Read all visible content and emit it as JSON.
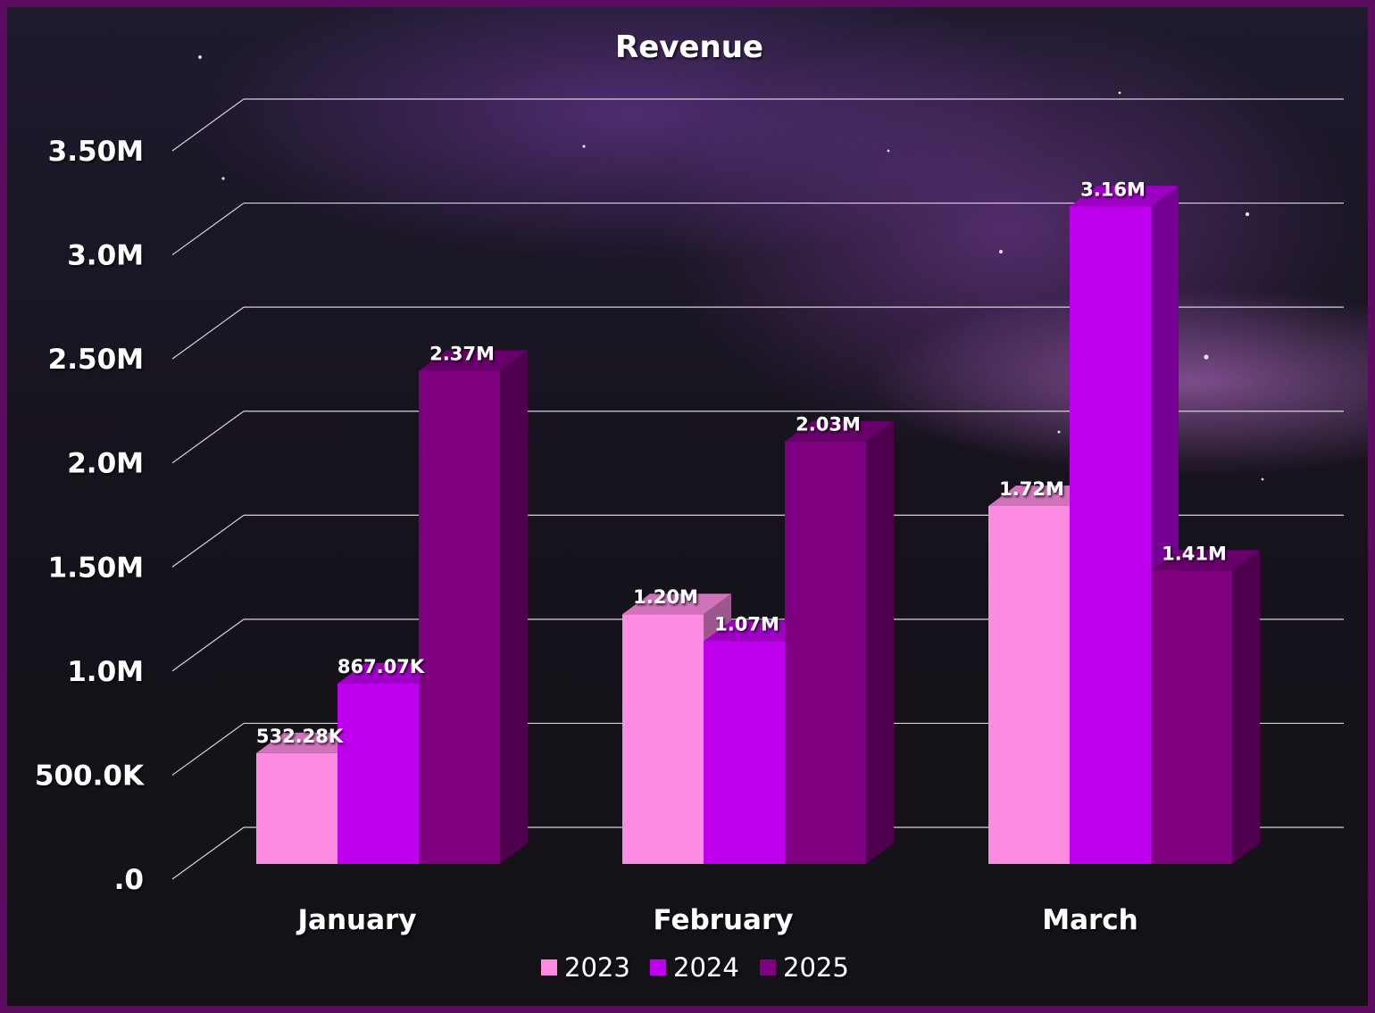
{
  "chart_data": {
    "type": "bar",
    "title": "Revenue",
    "categories": [
      "January",
      "February",
      "March"
    ],
    "series": [
      {
        "name": "2023",
        "values": [
          532280,
          1200000,
          1720000
        ],
        "labels": [
          "532.28K",
          "1.20M",
          "1.72M"
        ],
        "color": "#ff8ce3"
      },
      {
        "name": "2024",
        "values": [
          867070,
          1070000,
          3160000
        ],
        "labels": [
          "867.07K",
          "1.07M",
          "3.16M"
        ],
        "color": "#bf00ee"
      },
      {
        "name": "2025",
        "values": [
          2370000,
          2030000,
          1410000
        ],
        "labels": [
          "2.37M",
          "2.03M",
          "1.41M"
        ],
        "color": "#7e0080"
      }
    ],
    "y_ticks": [
      {
        "value": 0,
        "label": ".0"
      },
      {
        "value": 500000,
        "label": "500.0K"
      },
      {
        "value": 1000000,
        "label": "1.0M"
      },
      {
        "value": 1500000,
        "label": "1.50M"
      },
      {
        "value": 2000000,
        "label": "2.0M"
      },
      {
        "value": 2500000,
        "label": "2.50M"
      },
      {
        "value": 3000000,
        "label": "3.0M"
      },
      {
        "value": 3500000,
        "label": "3.50M"
      }
    ],
    "ylim": [
      0,
      3500000
    ],
    "grid": true,
    "legend_position": "bottom",
    "style": "3d-bars"
  }
}
